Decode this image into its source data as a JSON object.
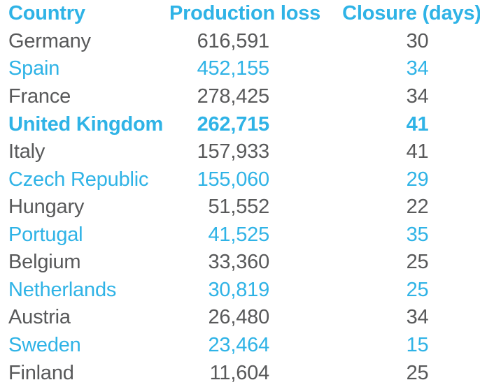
{
  "colors": {
    "accent": "#2FB3E6",
    "body_text": "#58595A",
    "background": "#FFFFFF"
  },
  "table": {
    "columns": [
      {
        "key": "country",
        "label": "Country"
      },
      {
        "key": "production_loss",
        "label": "Production loss"
      },
      {
        "key": "closure_days",
        "label": "Closure (days)"
      }
    ],
    "rows": [
      {
        "country": "Germany",
        "production_loss": "616,591",
        "closure_days": "30",
        "accent": false,
        "bold": false
      },
      {
        "country": "Spain",
        "production_loss": "452,155",
        "closure_days": "34",
        "accent": true,
        "bold": false
      },
      {
        "country": "France",
        "production_loss": "278,425",
        "closure_days": "34",
        "accent": false,
        "bold": false
      },
      {
        "country": "United Kingdom",
        "production_loss": "262,715",
        "closure_days": "41",
        "accent": true,
        "bold": true
      },
      {
        "country": "Italy",
        "production_loss": "157,933",
        "closure_days": "41",
        "accent": false,
        "bold": false
      },
      {
        "country": "Czech Republic",
        "production_loss": "155,060",
        "closure_days": "29",
        "accent": true,
        "bold": false
      },
      {
        "country": "Hungary",
        "production_loss": "51,552",
        "closure_days": "22",
        "accent": false,
        "bold": false
      },
      {
        "country": "Portugal",
        "production_loss": "41,525",
        "closure_days": "35",
        "accent": true,
        "bold": false
      },
      {
        "country": "Belgium",
        "production_loss": "33,360",
        "closure_days": "25",
        "accent": false,
        "bold": false
      },
      {
        "country": "Netherlands",
        "production_loss": "30,819",
        "closure_days": "25",
        "accent": true,
        "bold": false
      },
      {
        "country": "Austria",
        "production_loss": "26,480",
        "closure_days": "34",
        "accent": false,
        "bold": false
      },
      {
        "country": "Sweden",
        "production_loss": "23,464",
        "closure_days": "15",
        "accent": true,
        "bold": false
      },
      {
        "country": "Finland",
        "production_loss": "11,604",
        "closure_days": "25",
        "accent": false,
        "bold": false
      }
    ]
  },
  "chart_data": {
    "type": "table",
    "title": "",
    "categories": [
      "Germany",
      "Spain",
      "France",
      "United Kingdom",
      "Italy",
      "Czech Republic",
      "Hungary",
      "Portugal",
      "Belgium",
      "Netherlands",
      "Austria",
      "Sweden",
      "Finland"
    ],
    "series": [
      {
        "name": "Production loss",
        "values": [
          616591,
          452155,
          278425,
          262715,
          157933,
          155060,
          51552,
          41525,
          33360,
          30819,
          26480,
          23464,
          11604
        ]
      },
      {
        "name": "Closure (days)",
        "values": [
          30,
          34,
          34,
          41,
          41,
          29,
          22,
          35,
          25,
          25,
          34,
          15,
          25
        ]
      }
    ]
  }
}
